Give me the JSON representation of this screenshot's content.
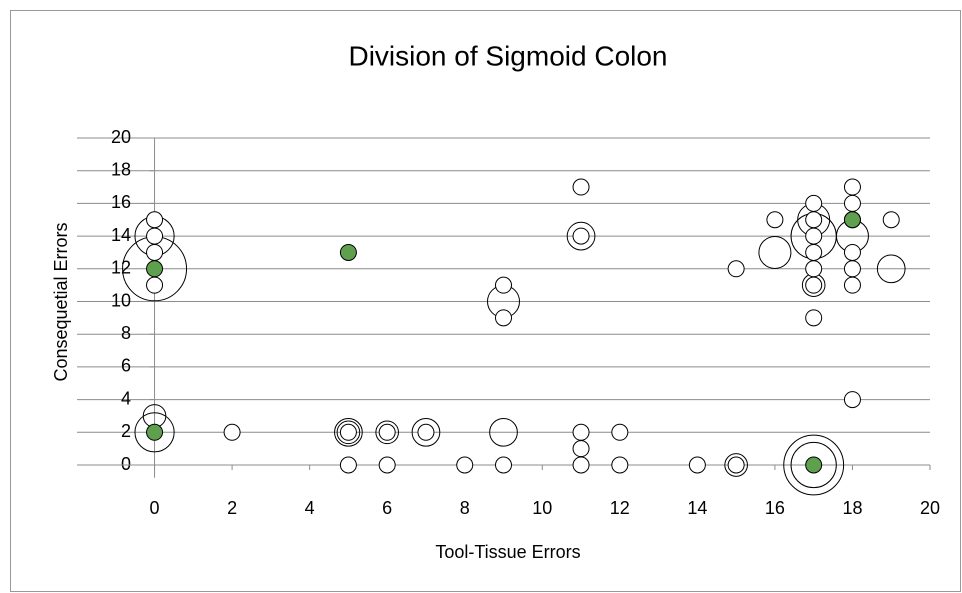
{
  "chart_data": {
    "type": "bubble",
    "title": "Division of Sigmoid Colon",
    "x_label": "Tool-Tissue Errors",
    "y_label": "Consequetial Errors",
    "xlim": [
      -2,
      20
    ],
    "ylim": [
      -2,
      20
    ],
    "xticks": [
      0,
      2,
      4,
      6,
      8,
      10,
      12,
      14,
      16,
      18,
      20
    ],
    "yticks": [
      0,
      2,
      4,
      6,
      8,
      10,
      12,
      14,
      16,
      18,
      20
    ],
    "grid": true,
    "series": [
      {
        "color": "#ffffff",
        "x": [
          0,
          0,
          0,
          0,
          0,
          0,
          0,
          0,
          2,
          5,
          5,
          5,
          5,
          6,
          6,
          6,
          7,
          7,
          8,
          9,
          9,
          9,
          9,
          9,
          11,
          11,
          11,
          11,
          11,
          11,
          12,
          12,
          14,
          15,
          15,
          15,
          16,
          16,
          17,
          17,
          17,
          17,
          17,
          17,
          17,
          17,
          17,
          17,
          17,
          17,
          18,
          18,
          18,
          18,
          18,
          18,
          18,
          18,
          19,
          19
        ],
        "y": [
          15,
          14,
          14,
          13,
          12,
          11,
          3,
          2,
          2,
          2,
          2,
          2,
          0,
          2,
          2,
          0,
          2,
          2,
          0,
          2,
          0,
          11,
          10,
          9,
          17,
          14,
          14,
          2,
          1,
          0,
          2,
          0,
          0,
          0,
          0,
          12,
          15,
          13,
          16,
          15,
          15,
          14,
          14,
          13,
          12,
          11,
          11,
          9,
          0,
          0,
          17,
          16,
          15,
          14,
          13,
          12,
          11,
          4,
          15,
          12
        ],
        "sizes": [
          1,
          6,
          1,
          1,
          16,
          1,
          2,
          6,
          1,
          3,
          2,
          1,
          1,
          2,
          1,
          1,
          3,
          1,
          1,
          3,
          1,
          1,
          4,
          1,
          1,
          3,
          1,
          1,
          1,
          1,
          1,
          1,
          1,
          2,
          1,
          1,
          1,
          4,
          1,
          4,
          1,
          1,
          8,
          1,
          1,
          2,
          1,
          1,
          14,
          8,
          1,
          1,
          1,
          4,
          1,
          1,
          1,
          1,
          1,
          3
        ]
      },
      {
        "color": "#5fa04e",
        "x": [
          0,
          0,
          5,
          17,
          18
        ],
        "y": [
          12,
          2,
          13,
          0,
          15
        ],
        "sizes": [
          1,
          1,
          1,
          1,
          1
        ]
      }
    ]
  }
}
